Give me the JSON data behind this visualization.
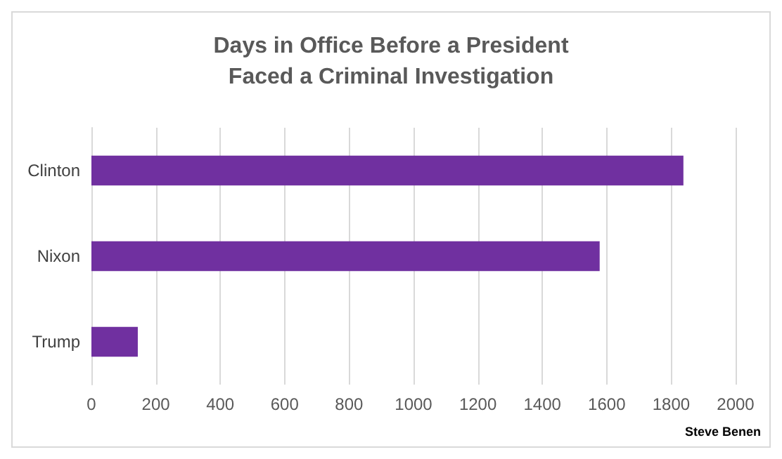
{
  "chart_data": {
    "type": "bar",
    "orientation": "horizontal",
    "title": "Days in Office Before a President\nFaced a Criminal Investigation",
    "categories": [
      "Clinton",
      "Nixon",
      "Trump"
    ],
    "values": [
      1838,
      1578,
      144
    ],
    "color": "#7030a0",
    "xlim": [
      0,
      2000
    ],
    "xticks": [
      0,
      200,
      400,
      600,
      800,
      1000,
      1200,
      1400,
      1600,
      1800,
      2000
    ],
    "grid": "x",
    "annotations": [
      "Steve Benen"
    ]
  }
}
